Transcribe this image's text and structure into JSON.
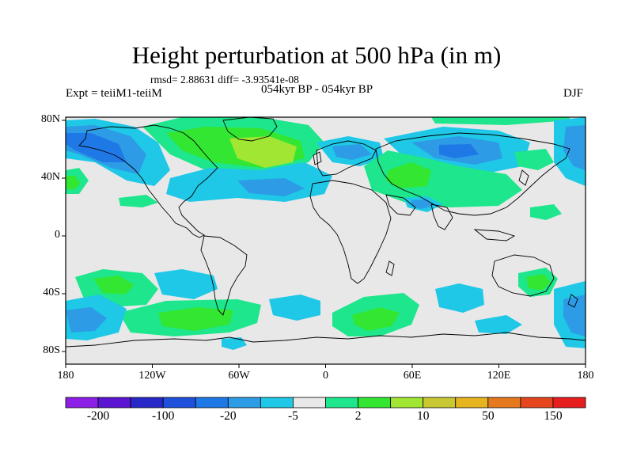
{
  "title": "Height perturbation at 500 hPa (in m)",
  "stats": "rmsd= 2.88631 diff= -3.93541e-08",
  "left_label": "Expt = teiiM1-teiiM",
  "center_label": "054kyr BP - 054kyr BP",
  "right_label": "DJF",
  "lat_labels": [
    "80N",
    "40N",
    "0",
    "40S",
    "80S"
  ],
  "lon_labels": [
    "180",
    "120W",
    "60W",
    "0",
    "60E",
    "120E",
    "180"
  ],
  "colorbar": {
    "colors": [
      "#8c1ee6",
      "#5a14d2",
      "#2828c8",
      "#1e50dc",
      "#1e78e6",
      "#2d9be6",
      "#1ec8e6",
      "#e8e8e8",
      "#1ee68c",
      "#32e632",
      "#a0e632",
      "#c8c832",
      "#e6b41e",
      "#e6781e",
      "#e6461e",
      "#e61e1e"
    ],
    "labels": [
      "-200",
      "-100",
      "-20",
      "-5",
      "2",
      "10",
      "50",
      "150"
    ]
  },
  "field_colors": {
    "background": "#e8e8e8",
    "neg_light": "#1ec8e6",
    "neg_mid": "#2d9be6",
    "neg_strong": "#1e78e6",
    "pos_light": "#1ee68c",
    "pos_mid": "#32e632",
    "pos_strong": "#a0e632"
  }
}
